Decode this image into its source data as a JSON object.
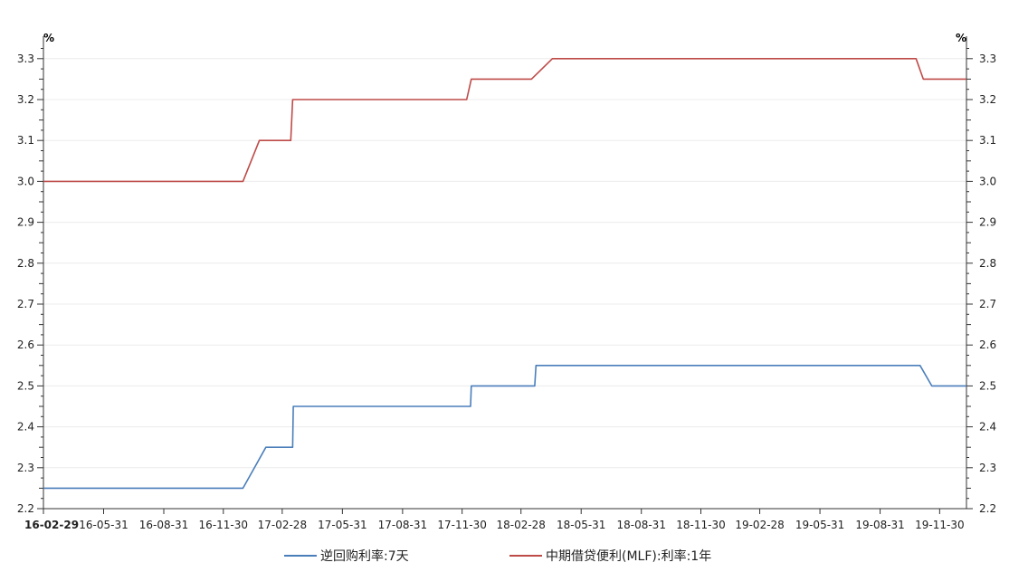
{
  "chart_data": {
    "type": "line",
    "unit_left": "%",
    "unit_right": "%",
    "ylim": [
      2.2,
      3.35
    ],
    "y_ticks": [
      "2.2",
      "2.3",
      "2.4",
      "2.5",
      "2.6",
      "2.7",
      "2.8",
      "2.9",
      "3.0",
      "3.1",
      "3.2",
      "3.3"
    ],
    "x_range": [
      "2016-02-29",
      "2020-01-10"
    ],
    "x_ticks": [
      {
        "date": "2016-02-29",
        "label": "16-02-29"
      },
      {
        "date": "2016-05-31",
        "label": "16-05-31"
      },
      {
        "date": "2016-08-31",
        "label": "16-08-31"
      },
      {
        "date": "2016-11-30",
        "label": "16-11-30"
      },
      {
        "date": "2017-02-28",
        "label": "17-02-28"
      },
      {
        "date": "2017-05-31",
        "label": "17-05-31"
      },
      {
        "date": "2017-08-31",
        "label": "17-08-31"
      },
      {
        "date": "2017-11-30",
        "label": "17-11-30"
      },
      {
        "date": "2018-02-28",
        "label": "18-02-28"
      },
      {
        "date": "2018-05-31",
        "label": "18-05-31"
      },
      {
        "date": "2018-08-31",
        "label": "18-08-31"
      },
      {
        "date": "2018-11-30",
        "label": "18-11-30"
      },
      {
        "date": "2019-02-28",
        "label": "19-02-28"
      },
      {
        "date": "2019-05-31",
        "label": "19-05-31"
      },
      {
        "date": "2019-08-31",
        "label": "19-08-31"
      },
      {
        "date": "2019-11-30",
        "label": "19-11-30"
      }
    ],
    "grid": true,
    "legend_position": "bottom",
    "series": [
      {
        "name": "逆回购利率:7天",
        "color": "#4a7ebb",
        "points": [
          [
            "2016-02-29",
            2.25
          ],
          [
            "2016-12-30",
            2.25
          ],
          [
            "2017-02-03",
            2.35
          ],
          [
            "2017-03-16",
            2.35
          ],
          [
            "2017-03-17",
            2.45
          ],
          [
            "2017-12-13",
            2.45
          ],
          [
            "2017-12-14",
            2.5
          ],
          [
            "2018-03-21",
            2.5
          ],
          [
            "2018-03-23",
            2.55
          ],
          [
            "2019-10-31",
            2.55
          ],
          [
            "2019-11-18",
            2.5
          ],
          [
            "2020-01-10",
            2.5
          ]
        ]
      },
      {
        "name": "中期借贷便利(MLF):利率:1年",
        "color": "#be4b48",
        "points": [
          [
            "2016-02-29",
            3.0
          ],
          [
            "2016-12-30",
            3.0
          ],
          [
            "2017-01-24",
            3.1
          ],
          [
            "2017-03-13",
            3.1
          ],
          [
            "2017-03-16",
            3.2
          ],
          [
            "2017-12-07",
            3.2
          ],
          [
            "2017-12-14",
            3.25
          ],
          [
            "2018-03-16",
            3.25
          ],
          [
            "2018-04-17",
            3.3
          ],
          [
            "2019-10-25",
            3.3
          ],
          [
            "2019-11-05",
            3.25
          ],
          [
            "2020-01-10",
            3.25
          ]
        ]
      }
    ]
  }
}
